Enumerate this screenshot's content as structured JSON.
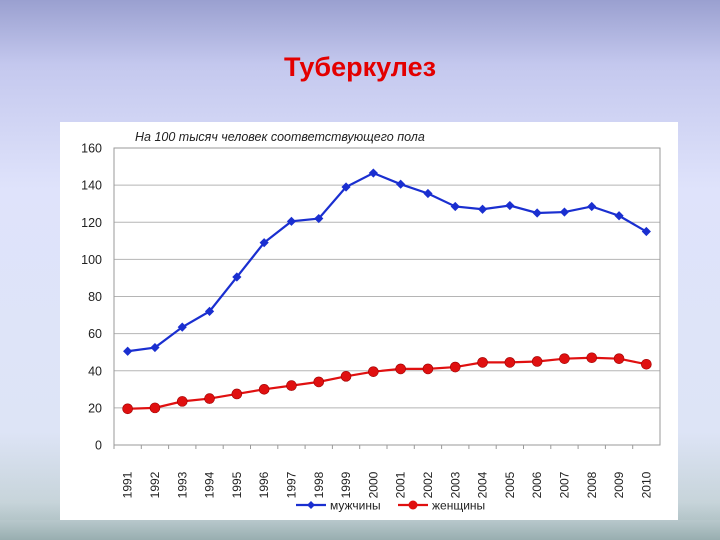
{
  "slide": {
    "title": "Туберкулез"
  },
  "chart_data": {
    "type": "line",
    "title": "На 100 тысяч человек соответствующего пола",
    "xlabel": "",
    "ylabel": "",
    "x": [
      "1991",
      "1992",
      "1993",
      "1994",
      "1995",
      "1996",
      "1997",
      "1998",
      "1999",
      "2000",
      "2001",
      "2002",
      "2003",
      "2004",
      "2005",
      "2006",
      "2007",
      "2008",
      "2009",
      "2010"
    ],
    "ylim": [
      0,
      160
    ],
    "yticks": [
      0,
      20,
      40,
      60,
      80,
      100,
      120,
      140,
      160
    ],
    "grid": true,
    "legend_position": "bottom",
    "series": [
      {
        "name": "мужчины",
        "color": "#1a2fd0",
        "marker": "diamond",
        "values": [
          50.5,
          52.5,
          63.5,
          72,
          90.5,
          109,
          120.5,
          122,
          139,
          146.5,
          140.5,
          135.5,
          128.5,
          127,
          129,
          125,
          125.5,
          128.5,
          123.5,
          115
        ]
      },
      {
        "name": "женщины",
        "color": "#e01010",
        "marker": "circle",
        "values": [
          19.5,
          20,
          23.5,
          25,
          27.5,
          30,
          32,
          34,
          37,
          39.5,
          41,
          41,
          42,
          44.5,
          44.5,
          45,
          46.5,
          47,
          46.5,
          43.5
        ]
      }
    ]
  }
}
